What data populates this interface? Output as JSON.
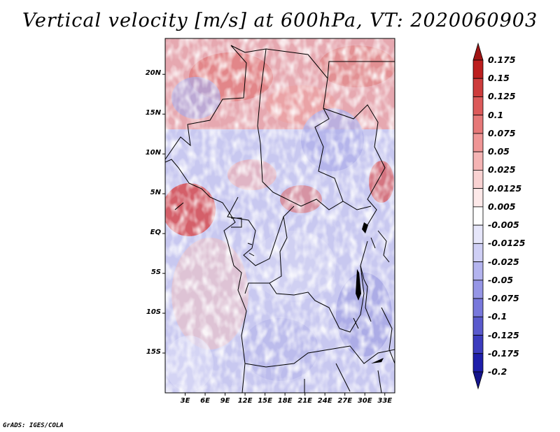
{
  "title": "Vertical velocity [m/s] at 600hPa, VT: 2020060903",
  "credit": "GrADS: IGES/COLA",
  "map": {
    "lat_labels": [
      "20N",
      "15N",
      "10N",
      "5N",
      "EQ",
      "5S",
      "10S",
      "15S"
    ],
    "lat_values": [
      20,
      15,
      10,
      5,
      0,
      -5,
      -10,
      -15
    ],
    "lon_labels": [
      "3E",
      "6E",
      "9E",
      "12E",
      "15E",
      "18E",
      "21E",
      "24E",
      "27E",
      "30E",
      "33E"
    ],
    "lon_values": [
      3,
      6,
      9,
      12,
      15,
      18,
      21,
      24,
      27,
      30,
      33
    ],
    "lat_range": [
      -20,
      24.5
    ],
    "lon_range": [
      0,
      34.5
    ]
  },
  "colorbar": {
    "labels": [
      "0.175",
      "0.15",
      "0.125",
      "0.1",
      "0.075",
      "0.05",
      "0.025",
      "0.0125",
      "0.005",
      "-0.005",
      "-0.0125",
      "-0.025",
      "-0.05",
      "-0.075",
      "-0.1",
      "-0.125",
      "-0.175",
      "-0.2"
    ],
    "colors": [
      "#a01414",
      "#bc1e1e",
      "#cd3c3c",
      "#dc5a5a",
      "#e67878",
      "#f09696",
      "#f5b4b4",
      "#f9d2d2",
      "#fde9e9",
      "#ffffff",
      "#e6e6fa",
      "#cfcff5",
      "#b4b4ef",
      "#9696e6",
      "#7878dc",
      "#5a5acd",
      "#3c3cbe",
      "#1e1eaa",
      "#14148c"
    ]
  }
}
